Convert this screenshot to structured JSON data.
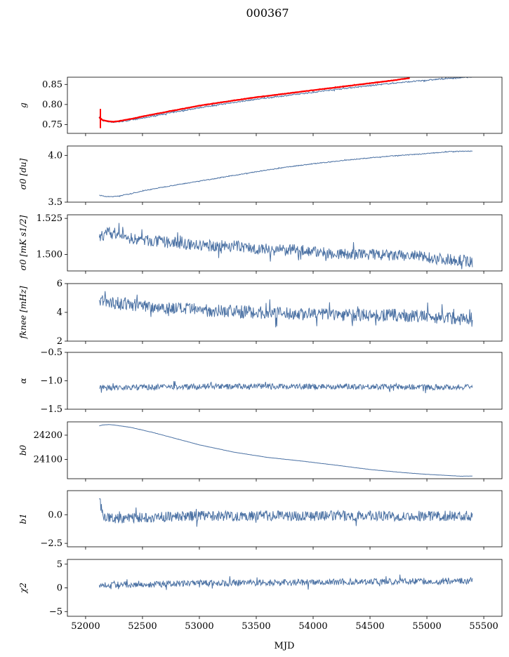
{
  "title": "000367",
  "xlabel": "MJD",
  "colors": {
    "series": "#4c72a4",
    "fit": "#ff0000",
    "axes": "#000000"
  },
  "chart_data": [
    {
      "type": "line",
      "ylabel": "g",
      "ylim": [
        0.728,
        0.868
      ],
      "yticks": [
        0.75,
        0.8,
        0.85
      ],
      "yticklabels": [
        "0.75",
        "0.80",
        "0.85"
      ],
      "series": [
        {
          "role": "data",
          "x": [
            52120,
            52150,
            52200,
            52250,
            52300,
            52400,
            52500,
            52700,
            53000,
            53300,
            53500,
            53700,
            53900,
            54100,
            54300,
            54500,
            54700,
            54900,
            55100,
            55300,
            55400
          ],
          "y": [
            0.767,
            0.76,
            0.757,
            0.756,
            0.757,
            0.761,
            0.766,
            0.777,
            0.792,
            0.805,
            0.813,
            0.82,
            0.827,
            0.834,
            0.841,
            0.847,
            0.853,
            0.858,
            0.863,
            0.867,
            0.869
          ]
        },
        {
          "role": "fit",
          "x": [
            52120,
            52150,
            52200,
            52250,
            52300,
            52400,
            52500,
            52700,
            53000,
            53300,
            53500,
            53700,
            53900,
            54100,
            54300,
            54500,
            54700,
            54850
          ],
          "y": [
            0.768,
            0.761,
            0.758,
            0.757,
            0.759,
            0.764,
            0.77,
            0.781,
            0.797,
            0.81,
            0.818,
            0.825,
            0.832,
            0.839,
            0.846,
            0.853,
            0.86,
            0.866
          ]
        }
      ]
    },
    {
      "type": "line",
      "ylabel": "σ0 [du]",
      "ylim": [
        3.5,
        4.1
      ],
      "yticks": [
        3.5,
        4.0
      ],
      "yticklabels": [
        "3.5",
        "4.0"
      ],
      "series": [
        {
          "x": [
            52120,
            52150,
            52200,
            52250,
            52300,
            52400,
            52500,
            52700,
            53000,
            53300,
            53500,
            53800,
            54000,
            54300,
            54600,
            54900,
            55200,
            55400
          ],
          "y": [
            3.575,
            3.565,
            3.558,
            3.56,
            3.568,
            3.59,
            3.62,
            3.665,
            3.725,
            3.785,
            3.825,
            3.88,
            3.91,
            3.95,
            3.985,
            4.01,
            4.04,
            4.045
          ]
        }
      ]
    },
    {
      "type": "line",
      "ylabel": "σ0 [mK s1/2]",
      "ylim": [
        1.4885,
        1.5275
      ],
      "yticks": [
        1.5,
        1.525
      ],
      "yticklabels": [
        "1.500",
        "1.525"
      ],
      "series": [
        {
          "x": [
            52120,
            52200,
            52400,
            52600,
            52800,
            53000,
            53300,
            53500,
            53700,
            53900,
            54100,
            54300,
            54500,
            54700,
            54900,
            55100,
            55300,
            55400
          ],
          "y": [
            1.512,
            1.515,
            1.511,
            1.509,
            1.508,
            1.506,
            1.506,
            1.504,
            1.503,
            1.503,
            1.501,
            1.5,
            1.5,
            1.499,
            1.499,
            1.497,
            1.496,
            1.495
          ]
        }
      ]
    },
    {
      "type": "line",
      "ylabel": "fknee [mHz]",
      "ylim": [
        2,
        6
      ],
      "yticks": [
        2,
        4,
        6
      ],
      "yticklabels": [
        "2",
        "4",
        "6"
      ],
      "series": [
        {
          "x": [
            52120,
            52300,
            52600,
            52900,
            53200,
            53500,
            53800,
            54100,
            54400,
            54700,
            55000,
            55300,
            55400
          ],
          "y": [
            4.8,
            4.6,
            4.4,
            4.2,
            4.1,
            4.0,
            3.9,
            3.9,
            3.8,
            3.8,
            3.7,
            3.6,
            3.6
          ]
        }
      ]
    },
    {
      "type": "line",
      "ylabel": "α",
      "ylim": [
        -1.5,
        -0.5
      ],
      "yticks": [
        -1.5,
        -1.0,
        -0.5
      ],
      "yticklabels": [
        "−1.5",
        "−1.0",
        "−0.5"
      ],
      "series": [
        {
          "x": [
            52120,
            52600,
            53200,
            53800,
            54400,
            55000,
            55400
          ],
          "y": [
            -1.12,
            -1.11,
            -1.1,
            -1.1,
            -1.1,
            -1.11,
            -1.11
          ]
        }
      ]
    },
    {
      "type": "line",
      "ylabel": "b0",
      "ylim": [
        24020,
        24255
      ],
      "yticks": [
        24100,
        24200
      ],
      "yticklabels": [
        "24100",
        "24200"
      ],
      "series": [
        {
          "x": [
            52120,
            52150,
            52200,
            52250,
            52400,
            52600,
            52800,
            53000,
            53300,
            53600,
            53900,
            54200,
            54500,
            54800,
            55000,
            55200,
            55300,
            55400
          ],
          "y": [
            24238,
            24242,
            24244,
            24242,
            24232,
            24210,
            24185,
            24160,
            24130,
            24108,
            24093,
            24076,
            24058,
            24045,
            24038,
            24033,
            24030,
            24031
          ]
        }
      ]
    },
    {
      "type": "line",
      "ylabel": "b1",
      "ylim": [
        -2.8,
        2.1
      ],
      "yticks": [
        -2.5,
        0.0
      ],
      "yticklabels": [
        "−2.5",
        "0.0"
      ],
      "series": [
        {
          "x": [
            52120,
            52135,
            52150,
            52200,
            52300,
            52600,
            53000,
            53500,
            54000,
            54500,
            55000,
            55400
          ],
          "y": [
            1.8,
            0.7,
            0.0,
            -0.3,
            -0.3,
            -0.2,
            -0.1,
            -0.1,
            -0.1,
            -0.1,
            -0.1,
            -0.1
          ]
        }
      ]
    },
    {
      "type": "line",
      "ylabel": "χ2",
      "ylim": [
        -6,
        6
      ],
      "yticks": [
        -5,
        0,
        5
      ],
      "yticklabels": [
        "−5",
        "0",
        "5"
      ],
      "series": [
        {
          "x": [
            52120,
            52600,
            53200,
            53800,
            54400,
            55000,
            55400
          ],
          "y": [
            0.7,
            0.8,
            1.0,
            1.1,
            1.3,
            1.4,
            1.5
          ]
        }
      ]
    }
  ],
  "xaxis": {
    "xlim": [
      51840,
      55660
    ],
    "xticks": [
      52000,
      52500,
      53000,
      53500,
      54000,
      54500,
      55000,
      55500
    ],
    "xticklabels": [
      "52000",
      "52500",
      "53000",
      "53500",
      "54000",
      "54500",
      "55000",
      "55500"
    ]
  }
}
